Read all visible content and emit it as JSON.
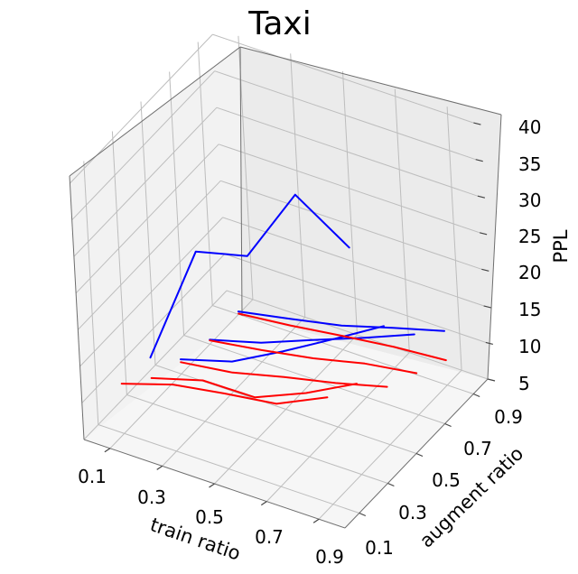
{
  "chart_data": {
    "type": "line",
    "title": "Taxi",
    "xlabel": "train ratio",
    "ylabel": "augment ratio",
    "zlabel": "PPL",
    "x_ticks": [
      "0.1",
      "0.3",
      "0.5",
      "0.7",
      "0.9"
    ],
    "y_ticks": [
      "0.1",
      "0.3",
      "0.5",
      "0.7",
      "0.9"
    ],
    "z_ticks": [
      "5",
      "10",
      "15",
      "20",
      "25",
      "30",
      "35",
      "40"
    ],
    "xlim": [
      0.0,
      1.0
    ],
    "ylim": [
      0.0,
      1.0
    ],
    "zlim": [
      5,
      41
    ],
    "grid": true,
    "series": [
      {
        "color": "#ff0000",
        "points": [
          {
            "x": 0.1,
            "y": 0.1,
            "z": 11.8
          },
          {
            "x": 0.3,
            "y": 0.1,
            "z": 14.1
          },
          {
            "x": 0.5,
            "y": 0.1,
            "z": 15.3
          },
          {
            "x": 0.7,
            "y": 0.1,
            "z": 16.3
          },
          {
            "x": 0.9,
            "y": 0.1,
            "z": 19.6
          }
        ]
      },
      {
        "color": "#0000ff",
        "points": [
          {
            "x": 0.1,
            "y": 0.3,
            "z": 11.3
          },
          {
            "x": 0.3,
            "y": 0.3,
            "z": 28.2
          },
          {
            "x": 0.5,
            "y": 0.3,
            "z": 30.0
          },
          {
            "x": 0.7,
            "y": 0.3,
            "z": 40.8
          },
          {
            "x": 0.9,
            "y": 0.3,
            "z": 36.0
          }
        ]
      },
      {
        "color": "#ff0000",
        "points": [
          {
            "x": 0.1,
            "y": 0.3,
            "z": 8.5
          },
          {
            "x": 0.3,
            "y": 0.3,
            "z": 10.6
          },
          {
            "x": 0.5,
            "y": 0.3,
            "z": 10.7
          },
          {
            "x": 0.7,
            "y": 0.3,
            "z": 13.7
          },
          {
            "x": 0.9,
            "y": 0.3,
            "z": 17.4
          }
        ]
      },
      {
        "color": "#0000ff",
        "points": [
          {
            "x": 0.1,
            "y": 0.5,
            "z": 7.0
          },
          {
            "x": 0.3,
            "y": 0.5,
            "z": 9.1
          },
          {
            "x": 0.5,
            "y": 0.5,
            "z": 12.9
          },
          {
            "x": 0.7,
            "y": 0.5,
            "z": 17.0
          },
          {
            "x": 0.9,
            "y": 0.5,
            "z": 21.2
          }
        ]
      },
      {
        "color": "#ff0000",
        "points": [
          {
            "x": 0.1,
            "y": 0.5,
            "z": 6.6
          },
          {
            "x": 0.3,
            "y": 0.5,
            "z": 7.6
          },
          {
            "x": 0.5,
            "y": 0.5,
            "z": 9.4
          },
          {
            "x": 0.7,
            "y": 0.5,
            "z": 11.0
          },
          {
            "x": 0.9,
            "y": 0.5,
            "z": 12.9
          }
        ]
      },
      {
        "color": "#0000ff",
        "points": [
          {
            "x": 0.1,
            "y": 0.7,
            "z": 5.6
          },
          {
            "x": 0.3,
            "y": 0.7,
            "z": 7.6
          },
          {
            "x": 0.5,
            "y": 0.7,
            "z": 10.4
          },
          {
            "x": 0.7,
            "y": 0.7,
            "z": 13.1
          },
          {
            "x": 0.9,
            "y": 0.7,
            "z": 16.0
          }
        ]
      },
      {
        "color": "#ff0000",
        "points": [
          {
            "x": 0.1,
            "y": 0.7,
            "z": 5.5
          },
          {
            "x": 0.3,
            "y": 0.7,
            "z": 6.6
          },
          {
            "x": 0.5,
            "y": 0.7,
            "z": 7.9
          },
          {
            "x": 0.7,
            "y": 0.7,
            "z": 9.6
          },
          {
            "x": 0.9,
            "y": 0.7,
            "z": 10.7
          }
        ]
      },
      {
        "color": "#0000ff",
        "points": [
          {
            "x": 0.1,
            "y": 0.9,
            "z": 5.4
          },
          {
            "x": 0.3,
            "y": 0.9,
            "z": 6.8
          },
          {
            "x": 0.5,
            "y": 0.9,
            "z": 8.3
          },
          {
            "x": 0.7,
            "y": 0.9,
            "z": 10.4
          },
          {
            "x": 0.9,
            "y": 0.9,
            "z": 12.4
          }
        ]
      },
      {
        "color": "#ff0000",
        "points": [
          {
            "x": 0.1,
            "y": 0.9,
            "z": 5.1
          },
          {
            "x": 0.3,
            "y": 0.9,
            "z": 5.9
          },
          {
            "x": 0.5,
            "y": 0.9,
            "z": 6.9
          },
          {
            "x": 0.7,
            "y": 0.9,
            "z": 7.8
          },
          {
            "x": 0.9,
            "y": 0.9,
            "z": 8.4
          }
        ]
      }
    ]
  }
}
